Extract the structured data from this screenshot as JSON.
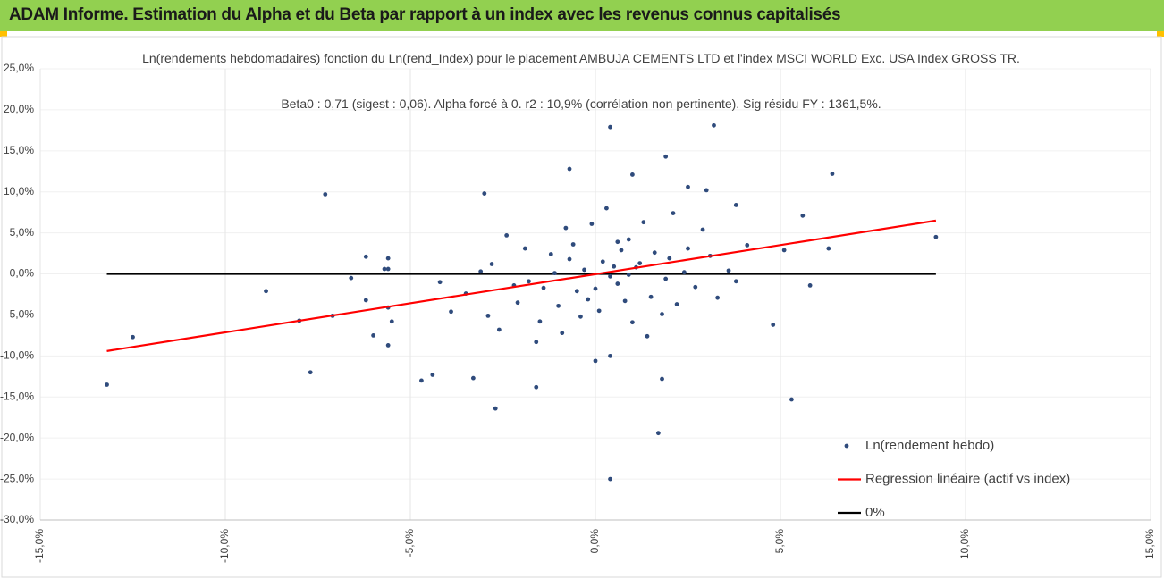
{
  "header": {
    "title": "ADAM Informe. Estimation du Alpha et du Beta par rapport à un index avec les revenus connus capitalisés"
  },
  "chart_data": {
    "type": "scatter",
    "title": "Ln(rendements hebdomadaires) fonction du Ln(rend_Index) pour le placement AMBUJA CEMENTS LTD et l'index MSCI WORLD Exc. USA Index GROSS TR.",
    "subtitle": "Beta0 : 0,71 (sigest : 0,06). Alpha forcé à 0. r2 : 10,9% (corrélation non pertinente). Sig résidu FY : 1361,5%.",
    "xlim": [
      -15,
      15
    ],
    "xticks": [
      {
        "value": -15,
        "label": "-15,0%"
      },
      {
        "value": -10,
        "label": "-10,0%"
      },
      {
        "value": -5,
        "label": "-5,0%"
      },
      {
        "value": 0,
        "label": "0,0%"
      },
      {
        "value": 5,
        "label": "5,0%"
      },
      {
        "value": 10,
        "label": "10,0%"
      },
      {
        "value": 15,
        "label": "15,0%"
      }
    ],
    "ylim": [
      -30,
      25
    ],
    "yticks": [
      {
        "value": 25,
        "label": "25,0%"
      },
      {
        "value": 20,
        "label": "20,0%"
      },
      {
        "value": 15,
        "label": "15,0%"
      },
      {
        "value": 10,
        "label": "10,0%"
      },
      {
        "value": 5,
        "label": "5,0%"
      },
      {
        "value": 0,
        "label": "0,0%"
      },
      {
        "value": -5,
        "label": "-5,0%"
      },
      {
        "value": -10,
        "label": "-10,0%"
      },
      {
        "value": -15,
        "label": "-15,0%"
      },
      {
        "value": -20,
        "label": "-20,0%"
      },
      {
        "value": -25,
        "label": "-25,0%"
      },
      {
        "value": -30,
        "label": "-30,0%"
      }
    ],
    "grid": true,
    "legend": "bottom-right",
    "series": [
      {
        "name": "Ln(rendement hebdo)",
        "type": "scatter",
        "color": "#2f4b7c",
        "x": [
          -13.2,
          -12.5,
          -8.9,
          -8.0,
          -7.7,
          -7.3,
          -7.1,
          -6.6,
          -6.2,
          -6.2,
          -6.0,
          -5.6,
          -5.7,
          -5.6,
          -5.6,
          -5.6,
          -5.5,
          -4.7,
          -4.4,
          -2.7,
          -3.3,
          -3.0,
          -1.6,
          -0.7,
          0.4,
          3.2,
          0.4,
          1.7,
          1.8,
          1.9,
          1.0,
          6.4,
          5.6,
          5.8,
          5.3,
          4.8,
          9.2,
          6.3,
          5.1,
          3.8,
          3.0,
          2.5,
          0.0,
          0.4,
          0.2,
          -0.5,
          1.1,
          0.6,
          -1.2,
          2.0,
          -2.1,
          0.9,
          -0.3,
          1.5,
          -1.8,
          2.5,
          0.1,
          -0.8,
          1.8,
          3.1,
          -2.8,
          0.4,
          -1.5,
          2.7,
          -3.5,
          1.3,
          -0.9,
          3.6,
          -2.4,
          0.7,
          -0.2,
          2.2,
          -1.1,
          1.0,
          -3.9,
          0.3,
          -0.6,
          2.9,
          -2.6,
          1.6,
          -1.4,
          0.5,
          3.3,
          -0.1,
          -4.2,
          1.9,
          -1.9,
          0.8,
          2.4,
          -2.2,
          0.0,
          4.1,
          -3.1,
          1.2,
          -0.4,
          2.1,
          -1.6,
          0.6,
          3.8,
          -2.9,
          1.4,
          -0.7,
          0.9,
          -1.0
        ],
        "values": [
          -13.5,
          -7.7,
          -2.1,
          -5.7,
          -12.0,
          9.7,
          -5.1,
          -0.5,
          2.1,
          -3.2,
          -7.5,
          1.9,
          0.6,
          0.6,
          -4.1,
          -8.7,
          -5.8,
          -13.0,
          -12.3,
          -16.4,
          -12.7,
          9.8,
          -13.8,
          12.8,
          17.9,
          18.1,
          -25.0,
          -19.4,
          -12.8,
          14.3,
          12.1,
          12.2,
          7.1,
          -1.4,
          -15.3,
          -6.2,
          4.5,
          3.1,
          2.9,
          8.4,
          10.2,
          10.6,
          -10.6,
          -10.0,
          1.5,
          -2.1,
          0.8,
          -1.2,
          2.4,
          1.9,
          -3.5,
          4.2,
          0.5,
          -2.8,
          -0.9,
          3.1,
          -4.5,
          5.6,
          -4.9,
          2.2,
          1.2,
          -0.3,
          -5.8,
          -1.6,
          -2.4,
          6.3,
          -7.2,
          0.4,
          4.7,
          2.9,
          -3.1,
          -3.7,
          0.1,
          -5.9,
          -4.6,
          8.0,
          3.6,
          5.4,
          -6.8,
          2.6,
          -1.7,
          0.9,
          -2.9,
          6.1,
          -1.0,
          -0.6,
          3.1,
          -3.3,
          0.2,
          -1.4,
          -1.8,
          3.5,
          0.3,
          1.3,
          -5.2,
          7.4,
          -8.3,
          3.9,
          -0.9,
          -5.1,
          -7.6,
          1.8,
          -0.1,
          -3.9
        ]
      },
      {
        "name": "Regression linéaire (actif vs index)",
        "type": "line",
        "color": "#ff0000",
        "x": [
          -13.2,
          9.2
        ],
        "values": [
          -9.4,
          6.5
        ]
      },
      {
        "name": "0%",
        "type": "line",
        "color": "#000000",
        "x": [
          -13.2,
          9.2
        ],
        "values": [
          0,
          0
        ]
      }
    ]
  }
}
